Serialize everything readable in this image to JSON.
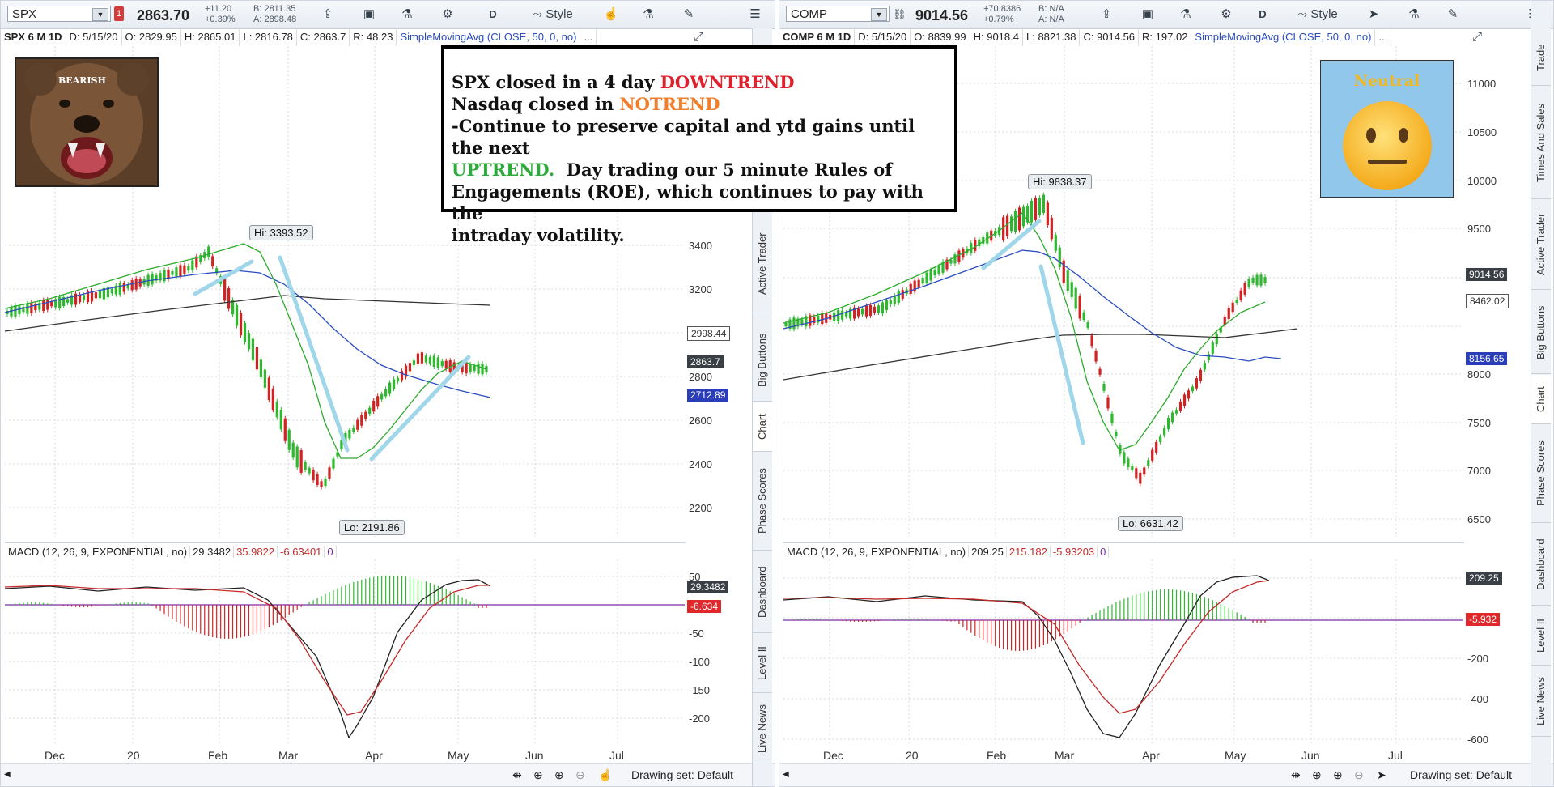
{
  "colors": {
    "red": "#e0202a",
    "orange": "#f07e2b",
    "green": "#2daa3b",
    "sma50": "#2bab2b",
    "sma_blue": "#2a4dbf",
    "sma200": "#333333",
    "macd_up": "#2db82d",
    "macd_dn": "#d22222",
    "trend_line": "#9fd6ea"
  },
  "left": {
    "symbol": "SPX",
    "alert": "1",
    "last": "2863.70",
    "change": "+11.20",
    "change_pct": "+0.39%",
    "bid": "B: 2811.35",
    "ask": "A: 2898.48",
    "toolbar": [
      "D",
      "Style"
    ],
    "info": {
      "title": "SPX 6 M 1D",
      "date": "D: 5/15/20",
      "open": "O: 2829.95",
      "high": "H: 2865.01",
      "low": "L: 2816.78",
      "close": "C: 2863.7",
      "range": "R: 48.23",
      "study": "SimpleMovingAvg (CLOSE, 50, 0, no)",
      "more": "..."
    },
    "bear_label": "BEARISH",
    "hi": "Hi: 3393.52",
    "lo": "Lo: 2191.86",
    "price_ticks": [
      "3400",
      "3200",
      "2800",
      "2600",
      "2400",
      "2200"
    ],
    "price_labels": {
      "sma200": "2998.44",
      "last": "2863.7",
      "sma50": "2712.89"
    },
    "macd_hdr": {
      "name": "MACD (12, 26, 9, EXPONENTIAL, no)",
      "value": "29.3482",
      "avg": "35.9822",
      "diff": "-6.63401",
      "zero": "0"
    },
    "macd_ticks": [
      "50",
      "-50",
      "-100",
      "-150",
      "-200"
    ],
    "macd_labels": {
      "value": "29.3482",
      "diff": "-6.634"
    },
    "dates": [
      "Dec",
      "20",
      "Feb",
      "Mar",
      "Apr",
      "May",
      "Jun",
      "Jul"
    ],
    "drawing_set": "Drawing set: Default"
  },
  "right": {
    "symbol": "COMP",
    "last": "9014.56",
    "change": "+70.8386",
    "change_pct": "+0.79%",
    "bid": "B: N/A",
    "ask": "A: N/A",
    "toolbar": [
      "D",
      "Style"
    ],
    "info": {
      "title": "COMP 6 M 1D",
      "date": "D: 5/15/20",
      "open": "O: 8839.99",
      "high": "H: 9018.4",
      "low": "L: 8821.38",
      "close": "C: 9014.56",
      "range": "R: 197.02",
      "study": "SimpleMovingAvg (CLOSE, 50, 0, no)",
      "more": "..."
    },
    "neutral_label": "Neutral",
    "hi": "Hi: 9838.37",
    "lo": "Lo: 6631.42",
    "price_ticks": [
      "11000",
      "10500",
      "10000",
      "9500",
      "8000",
      "7500",
      "7000",
      "6500"
    ],
    "price_labels": {
      "last": "9014.56",
      "sma200": "8462.02",
      "sma50": "8156.65"
    },
    "macd_hdr": {
      "name": "MACD (12, 26, 9, EXPONENTIAL, no)",
      "value": "209.25",
      "avg": "215.182",
      "diff": "-5.93203",
      "zero": "0"
    },
    "macd_ticks": [
      "-200",
      "-400",
      "-600"
    ],
    "macd_labels": {
      "value": "209.25",
      "diff": "-5.932"
    },
    "dates": [
      "Dec",
      "20",
      "Feb",
      "Mar",
      "Apr",
      "May",
      "Jun",
      "Jul"
    ],
    "drawing_set": "Drawing set: Default"
  },
  "sidetabs_left": [
    "Active Trader",
    "Big Buttons",
    "Chart",
    "Phase Scores",
    "Dashboard",
    "Level II",
    "Live News"
  ],
  "sidetabs_right": [
    "Trade",
    "Times And Sales",
    "Active Trader",
    "Big Buttons",
    "Chart",
    "Phase Scores",
    "Dashboard",
    "Level II",
    "Live News"
  ],
  "note": {
    "l1a": "SPX closed in a 4 day ",
    "l1b": "DOWNTREND",
    "l2a": "Nasdaq closed in ",
    "l2b": "NOTREND",
    "l3": "-Continue to preserve capital and ytd gains until the next",
    "l4a": "UPTREND.",
    "l4b": "  Day trading our 5 minute Rules of",
    "l5": "Engagements (ROE), which continues to pay with the",
    "l6": "intraday volatility."
  }
}
